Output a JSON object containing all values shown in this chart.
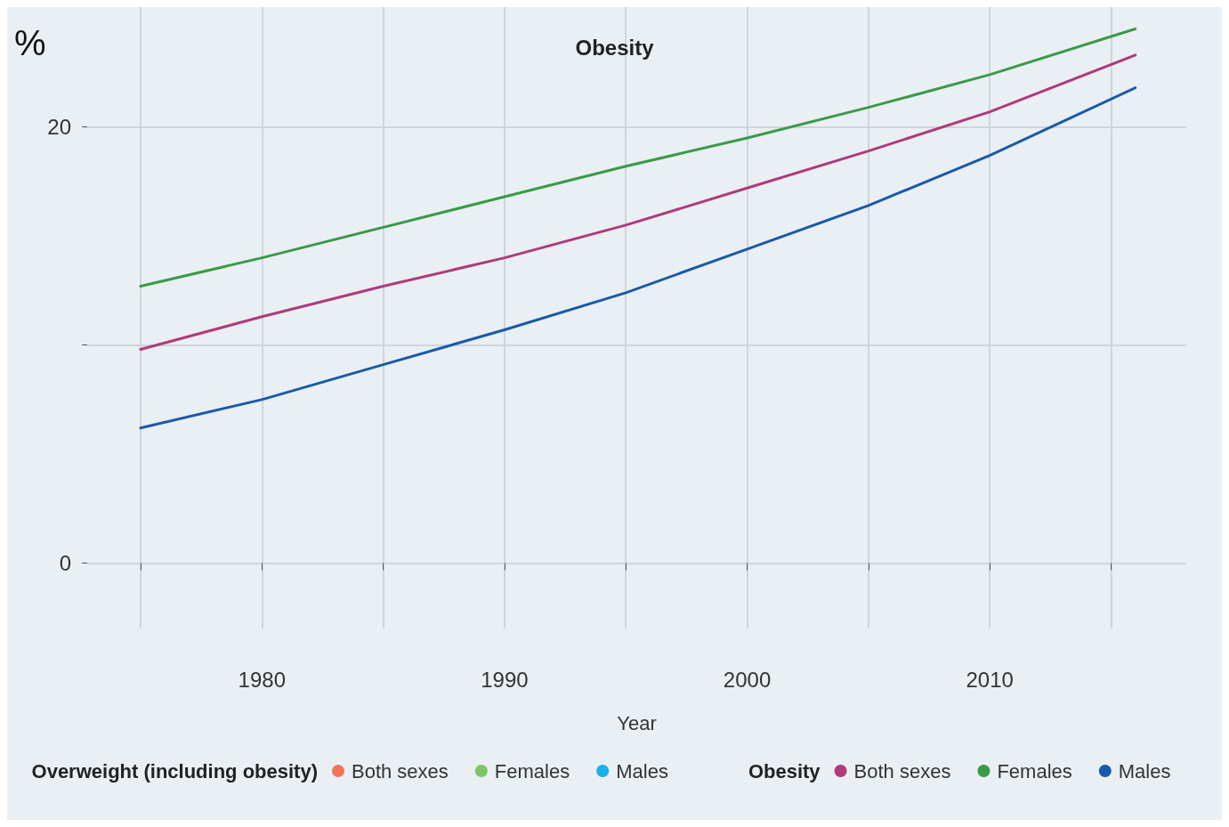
{
  "chart_data": {
    "type": "line",
    "title": "Obesity",
    "ylabel": "%",
    "xlabel": "Year",
    "legend_title": [
      "Overweight (including obesity)",
      "Obesity"
    ],
    "x": [
      1975,
      1980,
      1985,
      1990,
      1995,
      2000,
      2005,
      2010,
      2016
    ],
    "series": [
      {
        "name": "Both sexes",
        "color": "#f4735c",
        "values": [
          null,
          null,
          null,
          null,
          null,
          null,
          null,
          null,
          null
        ]
      },
      {
        "name": "Females",
        "color": "#7cc46a",
        "values": [
          null,
          null,
          null,
          null,
          null,
          null,
          null,
          null,
          null
        ]
      },
      {
        "name": "Males",
        "color": "#1ab0e8",
        "values": [
          null,
          null,
          null,
          null,
          null,
          null,
          null,
          null,
          null
        ]
      },
      {
        "name": "Both sexes",
        "color": "#b03a7a",
        "values": [
          9.8,
          11.3,
          12.7,
          14.0,
          15.5,
          17.2,
          18.9,
          20.7,
          23.3
        ]
      },
      {
        "name": "Females",
        "color": "#3a9a48",
        "values": [
          12.7,
          14.0,
          15.4,
          16.8,
          18.2,
          19.5,
          20.9,
          22.4,
          24.5
        ]
      },
      {
        "name": "Males",
        "color": "#1a5aa8",
        "values": [
          6.2,
          7.5,
          9.1,
          10.7,
          12.4,
          14.4,
          16.4,
          18.7,
          21.8
        ]
      }
    ],
    "xlim": [
      1972.8,
      2018.1
    ],
    "xticks": [
      {
        "value": 1975,
        "label": null
      },
      1980,
      {
        "value": 1985,
        "label": null
      },
      1990,
      {
        "value": 1995,
        "label": null
      },
      2000,
      {
        "value": 2005,
        "label": null
      },
      2010,
      {
        "value": 2015,
        "label": null
      }
    ],
    "ylim": [
      -3,
      25.5
    ],
    "yticks": [
      0,
      {
        "value": 10,
        "label": null
      },
      20
    ],
    "grid": true,
    "legend": "bottom",
    "marker": "none",
    "line_style": "solid"
  }
}
